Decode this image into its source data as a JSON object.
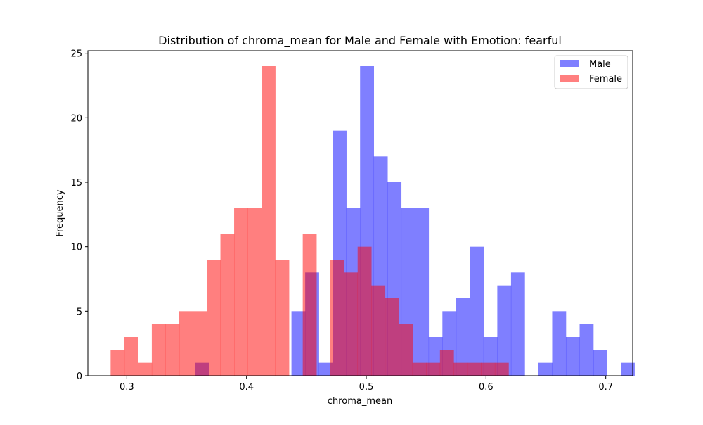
{
  "chart_data": {
    "type": "histogram",
    "title": "Distribution of chroma_mean for Male and Female with Emotion: fearful",
    "xlabel": "chroma_mean",
    "ylabel": "Frequency",
    "xlim": [
      0.2675,
      0.7225
    ],
    "ylim": [
      0,
      25.2
    ],
    "xticks": [
      {
        "value": 0.3,
        "label": "0.3"
      },
      {
        "value": 0.4,
        "label": "0.4"
      },
      {
        "value": 0.5,
        "label": "0.5"
      },
      {
        "value": 0.6,
        "label": "0.6"
      },
      {
        "value": 0.7,
        "label": "0.7"
      }
    ],
    "yticks": [
      {
        "value": 0,
        "label": "0"
      },
      {
        "value": 5,
        "label": "5"
      },
      {
        "value": 10,
        "label": "10"
      },
      {
        "value": 15,
        "label": "15"
      },
      {
        "value": 20,
        "label": "20"
      },
      {
        "value": 25,
        "label": "25"
      }
    ],
    "grid": false,
    "legend_position": "top-right",
    "series": [
      {
        "name": "Male",
        "color": "#0000ff",
        "alpha": 0.5,
        "bin_start": 0.3573,
        "bin_width": 0.01146,
        "values": [
          1,
          0,
          0,
          0,
          0,
          0,
          0,
          5,
          8,
          1,
          19,
          13,
          24,
          17,
          15,
          13,
          13,
          3,
          5,
          6,
          10,
          3,
          7,
          8,
          0,
          1,
          5,
          3,
          4,
          2,
          0,
          1
        ]
      },
      {
        "name": "Female",
        "color": "#ff0000",
        "alpha": 0.5,
        "bin_start": 0.2865,
        "bin_width": 0.01146,
        "values": [
          2,
          3,
          1,
          4,
          4,
          5,
          5,
          9,
          11,
          13,
          13,
          24,
          9,
          0,
          11,
          0,
          9,
          8,
          10,
          7,
          6,
          4,
          1,
          1,
          2,
          1,
          1,
          1,
          1
        ]
      }
    ]
  }
}
